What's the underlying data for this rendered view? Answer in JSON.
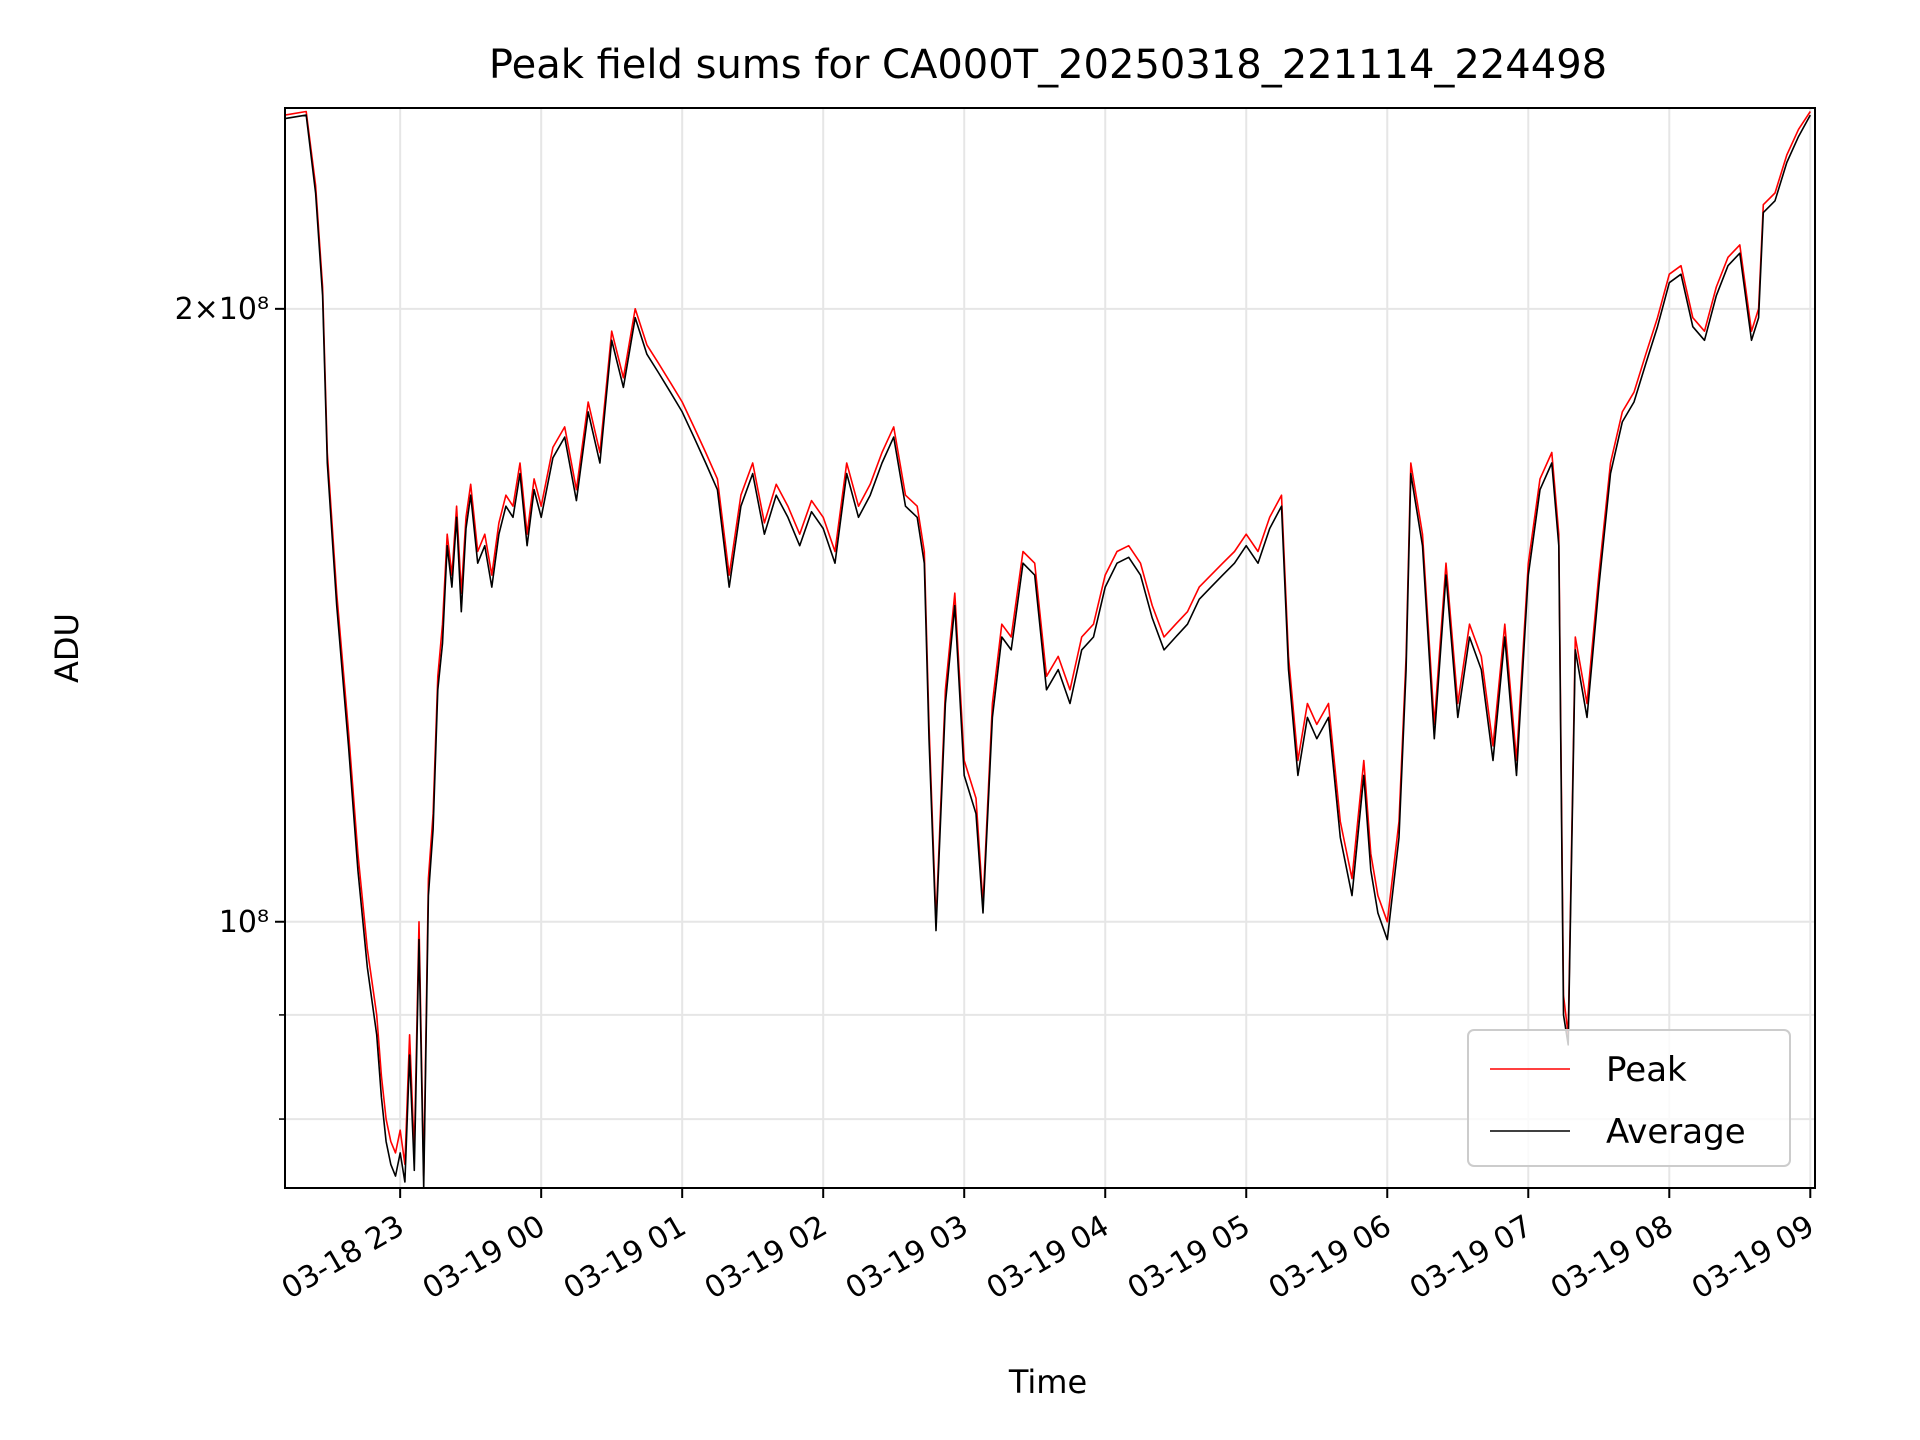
{
  "chart_data": {
    "type": "line",
    "title": "Peak field sums for CA000T_20250318_221114_224498",
    "xlabel": "Time",
    "ylabel": "ADU",
    "y_scale": "log",
    "xlim": [
      "2025-03-18 22:11",
      "2025-03-19 09:02"
    ],
    "ylim": [
      74000000,
      251000000
    ],
    "grid": true,
    "legend_placement": "lower-right",
    "x_tick_labels": [
      "03-18 23",
      "03-19 00",
      "03-19 01",
      "03-19 02",
      "03-19 03",
      "03-19 04",
      "03-19 05",
      "03-19 06",
      "03-19 07",
      "03-19 08",
      "03-19 09"
    ],
    "y_tick_labels": [
      {
        "value": 100000000,
        "label": "10⁸"
      },
      {
        "value": 200000000,
        "label": "2×10⁸"
      }
    ],
    "series": [
      {
        "name": "Peak",
        "color": "#ff0000",
        "x": [
          "2025-03-18 22:11",
          "2025-03-18 22:20",
          "2025-03-18 22:24",
          "2025-03-18 22:27",
          "2025-03-18 22:29",
          "2025-03-18 22:33",
          "2025-03-18 22:38",
          "2025-03-18 22:42",
          "2025-03-18 22:46",
          "2025-03-18 22:50",
          "2025-03-18 22:52",
          "2025-03-18 22:54",
          "2025-03-18 22:56",
          "2025-03-18 22:58",
          "2025-03-18 23:00",
          "2025-03-18 23:02",
          "2025-03-18 23:04",
          "2025-03-18 23:06",
          "2025-03-18 23:08",
          "2025-03-18 23:10",
          "2025-03-18 23:12",
          "2025-03-18 23:14",
          "2025-03-18 23:16",
          "2025-03-18 23:18",
          "2025-03-18 23:20",
          "2025-03-18 23:22",
          "2025-03-18 23:24",
          "2025-03-18 23:26",
          "2025-03-18 23:28",
          "2025-03-18 23:30",
          "2025-03-18 23:33",
          "2025-03-18 23:36",
          "2025-03-18 23:39",
          "2025-03-18 23:42",
          "2025-03-18 23:45",
          "2025-03-18 23:48",
          "2025-03-18 23:51",
          "2025-03-18 23:54",
          "2025-03-18 23:57",
          "2025-03-19 00:00",
          "2025-03-19 00:05",
          "2025-03-19 00:10",
          "2025-03-19 00:15",
          "2025-03-19 00:20",
          "2025-03-19 00:25",
          "2025-03-19 00:30",
          "2025-03-19 00:35",
          "2025-03-19 00:40",
          "2025-03-19 00:45",
          "2025-03-19 00:50",
          "2025-03-19 00:55",
          "2025-03-19 01:00",
          "2025-03-19 01:05",
          "2025-03-19 01:10",
          "2025-03-19 01:15",
          "2025-03-19 01:20",
          "2025-03-19 01:25",
          "2025-03-19 01:30",
          "2025-03-19 01:35",
          "2025-03-19 01:40",
          "2025-03-19 01:45",
          "2025-03-19 01:50",
          "2025-03-19 01:55",
          "2025-03-19 02:00",
          "2025-03-19 02:05",
          "2025-03-19 02:10",
          "2025-03-19 02:15",
          "2025-03-19 02:20",
          "2025-03-19 02:25",
          "2025-03-19 02:30",
          "2025-03-19 02:35",
          "2025-03-19 02:40",
          "2025-03-19 02:43",
          "2025-03-19 02:45",
          "2025-03-19 02:48",
          "2025-03-19 02:52",
          "2025-03-19 02:56",
          "2025-03-19 03:00",
          "2025-03-19 03:05",
          "2025-03-19 03:08",
          "2025-03-19 03:12",
          "2025-03-19 03:16",
          "2025-03-19 03:20",
          "2025-03-19 03:25",
          "2025-03-19 03:30",
          "2025-03-19 03:35",
          "2025-03-19 03:40",
          "2025-03-19 03:45",
          "2025-03-19 03:50",
          "2025-03-19 03:55",
          "2025-03-19 04:00",
          "2025-03-19 04:05",
          "2025-03-19 04:10",
          "2025-03-19 04:15",
          "2025-03-19 04:20",
          "2025-03-19 04:25",
          "2025-03-19 04:30",
          "2025-03-19 04:35",
          "2025-03-19 04:40",
          "2025-03-19 04:45",
          "2025-03-19 04:50",
          "2025-03-19 04:55",
          "2025-03-19 05:00",
          "2025-03-19 05:05",
          "2025-03-19 05:10",
          "2025-03-19 05:15",
          "2025-03-19 05:18",
          "2025-03-19 05:22",
          "2025-03-19 05:26",
          "2025-03-19 05:30",
          "2025-03-19 05:35",
          "2025-03-19 05:40",
          "2025-03-19 05:45",
          "2025-03-19 05:50",
          "2025-03-19 05:53",
          "2025-03-19 05:56",
          "2025-03-19 06:00",
          "2025-03-19 06:05",
          "2025-03-19 06:08",
          "2025-03-19 06:10",
          "2025-03-19 06:15",
          "2025-03-19 06:20",
          "2025-03-19 06:25",
          "2025-03-19 06:30",
          "2025-03-19 06:35",
          "2025-03-19 06:40",
          "2025-03-19 06:45",
          "2025-03-19 06:50",
          "2025-03-19 06:55",
          "2025-03-19 07:00",
          "2025-03-19 07:05",
          "2025-03-19 07:10",
          "2025-03-19 07:13",
          "2025-03-19 07:15",
          "2025-03-19 07:17",
          "2025-03-19 07:20",
          "2025-03-19 07:25",
          "2025-03-19 07:30",
          "2025-03-19 07:35",
          "2025-03-19 07:40",
          "2025-03-19 07:45",
          "2025-03-19 07:50",
          "2025-03-19 07:55",
          "2025-03-19 08:00",
          "2025-03-19 08:05",
          "2025-03-19 08:10",
          "2025-03-19 08:15",
          "2025-03-19 08:20",
          "2025-03-19 08:25",
          "2025-03-19 08:30",
          "2025-03-19 08:35",
          "2025-03-19 08:38",
          "2025-03-19 08:40",
          "2025-03-19 08:45",
          "2025-03-19 08:50",
          "2025-03-19 08:55",
          "2025-03-19 09:00"
        ],
        "values": [
          249000000,
          250000000,
          230000000,
          205000000,
          170000000,
          145000000,
          124000000,
          108000000,
          97000000,
          90000000,
          84000000,
          80000000,
          78000000,
          77000000,
          79000000,
          76000000,
          88000000,
          77000000,
          100000000,
          75000000,
          105000000,
          113000000,
          132000000,
          140000000,
          155000000,
          148000000,
          160000000,
          145000000,
          158000000,
          164000000,
          152000000,
          155000000,
          148000000,
          157000000,
          162000000,
          160000000,
          168000000,
          155000000,
          165000000,
          160000000,
          171000000,
          175000000,
          163000000,
          180000000,
          170000000,
          195000000,
          185000000,
          200000000,
          192000000,
          188000000,
          184000000,
          180000000,
          175000000,
          170000000,
          165000000,
          148000000,
          162000000,
          168000000,
          157000000,
          164000000,
          160000000,
          155000000,
          161000000,
          158000000,
          152000000,
          168000000,
          160000000,
          164000000,
          170000000,
          175000000,
          162000000,
          160000000,
          152000000,
          125000000,
          100000000,
          130000000,
          145000000,
          120000000,
          115000000,
          102000000,
          128000000,
          140000000,
          138000000,
          152000000,
          150000000,
          132000000,
          135000000,
          130000000,
          138000000,
          140000000,
          148000000,
          152000000,
          153000000,
          150000000,
          143000000,
          138000000,
          140000000,
          142000000,
          146000000,
          148000000,
          150000000,
          152000000,
          155000000,
          152000000,
          158000000,
          162000000,
          135000000,
          120000000,
          128000000,
          125000000,
          128000000,
          112000000,
          105000000,
          120000000,
          108000000,
          103000000,
          100000000,
          112000000,
          135000000,
          168000000,
          155000000,
          125000000,
          150000000,
          128000000,
          140000000,
          135000000,
          122000000,
          140000000,
          120000000,
          150000000,
          165000000,
          170000000,
          155000000,
          92000000,
          88000000,
          138000000,
          128000000,
          148000000,
          168000000,
          178000000,
          182000000,
          190000000,
          198000000,
          208000000,
          210000000,
          198000000,
          195000000,
          205000000,
          212000000,
          215000000,
          195000000,
          200000000,
          225000000,
          228000000,
          238000000,
          245000000,
          250000000
        ]
      },
      {
        "name": "Average",
        "color": "#000000",
        "x": [
          "2025-03-18 22:11",
          "2025-03-18 22:20",
          "2025-03-18 22:24",
          "2025-03-18 22:27",
          "2025-03-18 22:29",
          "2025-03-18 22:33",
          "2025-03-18 22:38",
          "2025-03-18 22:42",
          "2025-03-18 22:46",
          "2025-03-18 22:50",
          "2025-03-18 22:52",
          "2025-03-18 22:54",
          "2025-03-18 22:56",
          "2025-03-18 22:58",
          "2025-03-18 23:00",
          "2025-03-18 23:02",
          "2025-03-18 23:04",
          "2025-03-18 23:06",
          "2025-03-18 23:08",
          "2025-03-18 23:10",
          "2025-03-18 23:12",
          "2025-03-18 23:14",
          "2025-03-18 23:16",
          "2025-03-18 23:18",
          "2025-03-18 23:20",
          "2025-03-18 23:22",
          "2025-03-18 23:24",
          "2025-03-18 23:26",
          "2025-03-18 23:28",
          "2025-03-18 23:30",
          "2025-03-18 23:33",
          "2025-03-18 23:36",
          "2025-03-18 23:39",
          "2025-03-18 23:42",
          "2025-03-18 23:45",
          "2025-03-18 23:48",
          "2025-03-18 23:51",
          "2025-03-18 23:54",
          "2025-03-18 23:57",
          "2025-03-19 00:00",
          "2025-03-19 00:05",
          "2025-03-19 00:10",
          "2025-03-19 00:15",
          "2025-03-19 00:20",
          "2025-03-19 00:25",
          "2025-03-19 00:30",
          "2025-03-19 00:35",
          "2025-03-19 00:40",
          "2025-03-19 00:45",
          "2025-03-19 00:50",
          "2025-03-19 00:55",
          "2025-03-19 01:00",
          "2025-03-19 01:05",
          "2025-03-19 01:10",
          "2025-03-19 01:15",
          "2025-03-19 01:20",
          "2025-03-19 01:25",
          "2025-03-19 01:30",
          "2025-03-19 01:35",
          "2025-03-19 01:40",
          "2025-03-19 01:45",
          "2025-03-19 01:50",
          "2025-03-19 01:55",
          "2025-03-19 02:00",
          "2025-03-19 02:05",
          "2025-03-19 02:10",
          "2025-03-19 02:15",
          "2025-03-19 02:20",
          "2025-03-19 02:25",
          "2025-03-19 02:30",
          "2025-03-19 02:35",
          "2025-03-19 02:40",
          "2025-03-19 02:43",
          "2025-03-19 02:45",
          "2025-03-19 02:48",
          "2025-03-19 02:52",
          "2025-03-19 02:56",
          "2025-03-19 03:00",
          "2025-03-19 03:05",
          "2025-03-19 03:08",
          "2025-03-19 03:12",
          "2025-03-19 03:16",
          "2025-03-19 03:20",
          "2025-03-19 03:25",
          "2025-03-19 03:30",
          "2025-03-19 03:35",
          "2025-03-19 03:40",
          "2025-03-19 03:45",
          "2025-03-19 03:50",
          "2025-03-19 03:55",
          "2025-03-19 04:00",
          "2025-03-19 04:05",
          "2025-03-19 04:10",
          "2025-03-19 04:15",
          "2025-03-19 04:20",
          "2025-03-19 04:25",
          "2025-03-19 04:30",
          "2025-03-19 04:35",
          "2025-03-19 04:40",
          "2025-03-19 04:45",
          "2025-03-19 04:50",
          "2025-03-19 04:55",
          "2025-03-19 05:00",
          "2025-03-19 05:05",
          "2025-03-19 05:10",
          "2025-03-19 05:15",
          "2025-03-19 05:18",
          "2025-03-19 05:22",
          "2025-03-19 05:26",
          "2025-03-19 05:30",
          "2025-03-19 05:35",
          "2025-03-19 05:40",
          "2025-03-19 05:45",
          "2025-03-19 05:50",
          "2025-03-19 05:53",
          "2025-03-19 05:56",
          "2025-03-19 06:00",
          "2025-03-19 06:05",
          "2025-03-19 06:08",
          "2025-03-19 06:10",
          "2025-03-19 06:15",
          "2025-03-19 06:20",
          "2025-03-19 06:25",
          "2025-03-19 06:30",
          "2025-03-19 06:35",
          "2025-03-19 06:40",
          "2025-03-19 06:45",
          "2025-03-19 06:50",
          "2025-03-19 06:55",
          "2025-03-19 07:00",
          "2025-03-19 07:05",
          "2025-03-19 07:10",
          "2025-03-19 07:13",
          "2025-03-19 07:15",
          "2025-03-19 07:17",
          "2025-03-19 07:20",
          "2025-03-19 07:25",
          "2025-03-19 07:30",
          "2025-03-19 07:35",
          "2025-03-19 07:40",
          "2025-03-19 07:45",
          "2025-03-19 07:50",
          "2025-03-19 07:55",
          "2025-03-19 08:00",
          "2025-03-19 08:05",
          "2025-03-19 08:10",
          "2025-03-19 08:15",
          "2025-03-19 08:20",
          "2025-03-19 08:25",
          "2025-03-19 08:30",
          "2025-03-19 08:35",
          "2025-03-19 08:38",
          "2025-03-19 08:40",
          "2025-03-19 08:45",
          "2025-03-19 08:50",
          "2025-03-19 08:55",
          "2025-03-19 09:00"
        ],
        "values": [
          248000000,
          249000000,
          228000000,
          203000000,
          168000000,
          143000000,
          122000000,
          106000000,
          95000000,
          88000000,
          82000000,
          78000000,
          76000000,
          75000000,
          77000000,
          74500000,
          86000000,
          75500000,
          98000000,
          74000000,
          103000000,
          111000000,
          130000000,
          137000000,
          153000000,
          146000000,
          158000000,
          142000000,
          156000000,
          162000000,
          150000000,
          153000000,
          146000000,
          155000000,
          160000000,
          158000000,
          166000000,
          153000000,
          163000000,
          158000000,
          169000000,
          173000000,
          161000000,
          178000000,
          168000000,
          193000000,
          183000000,
          198000000,
          190000000,
          186000000,
          182000000,
          178000000,
          173000000,
          168000000,
          163000000,
          146000000,
          160000000,
          166000000,
          155000000,
          162000000,
          158000000,
          153000000,
          159000000,
          156000000,
          150000000,
          166000000,
          158000000,
          162000000,
          168000000,
          173000000,
          160000000,
          158000000,
          150000000,
          123000000,
          99000000,
          128000000,
          143000000,
          118000000,
          113000000,
          101000000,
          126000000,
          138000000,
          136000000,
          150000000,
          148000000,
          130000000,
          133000000,
          128000000,
          136000000,
          138000000,
          146000000,
          150000000,
          151000000,
          148000000,
          141000000,
          136000000,
          138000000,
          140000000,
          144000000,
          146000000,
          148000000,
          150000000,
          153000000,
          150000000,
          156000000,
          160000000,
          133000000,
          118000000,
          126000000,
          123000000,
          126000000,
          110000000,
          103000000,
          118000000,
          106000000,
          101000000,
          98000000,
          110000000,
          133000000,
          166000000,
          153000000,
          123000000,
          148000000,
          126000000,
          138000000,
          133000000,
          120000000,
          138000000,
          118000000,
          148000000,
          163000000,
          168000000,
          153000000,
          90000000,
          87000000,
          136000000,
          126000000,
          146000000,
          166000000,
          176000000,
          180000000,
          188000000,
          196000000,
          206000000,
          208000000,
          196000000,
          193000000,
          203000000,
          210000000,
          213000000,
          193000000,
          198000000,
          223000000,
          226000000,
          236000000,
          243000000,
          249000000
        ]
      }
    ]
  }
}
